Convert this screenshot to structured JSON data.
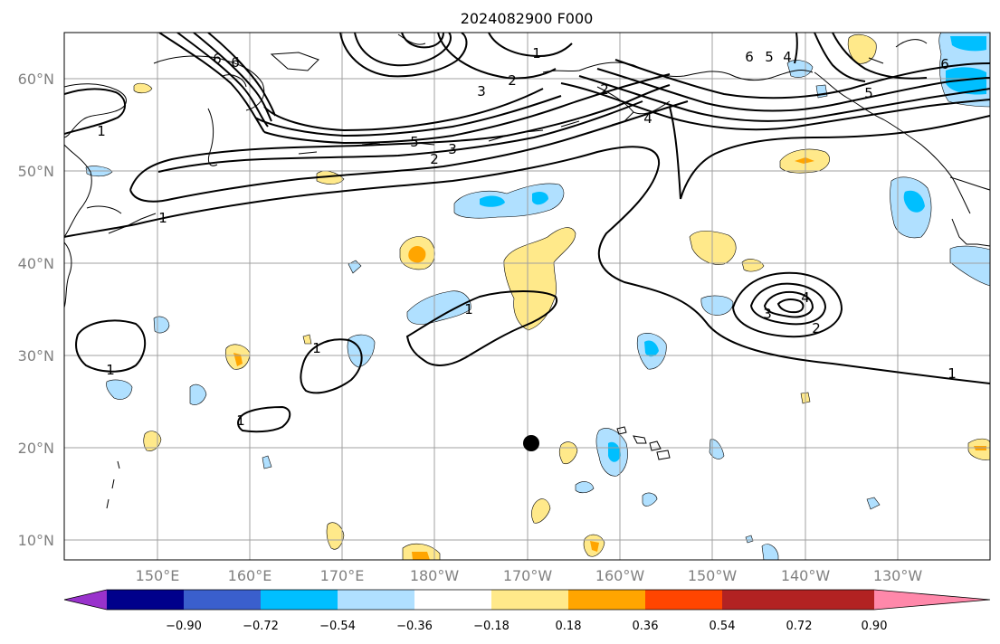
{
  "title": "2024082900 F000",
  "lat_labels": [
    "60°N",
    "50°N",
    "40°N",
    "30°N",
    "20°N",
    "10°N"
  ],
  "lon_labels": [
    "150°E",
    "160°E",
    "170°E",
    "180°W",
    "170°W",
    "160°W",
    "150°W",
    "140°W",
    "130°W"
  ],
  "colorbar": {
    "ticks": [
      "−0.90",
      "−0.72",
      "−0.54",
      "−0.36",
      "−0.18",
      "0.18",
      "0.36",
      "0.54",
      "0.72",
      "0.90"
    ],
    "colors": [
      "#9932cc",
      "#00008b",
      "#3a5fcd",
      "#00bfff",
      "#b0e0ff",
      "#ffffff",
      "#ffe98a",
      "#ffa500",
      "#ff4500",
      "#b22222",
      "#ff88aa"
    ]
  },
  "contour_labels": [
    "6",
    "6",
    "1",
    "1",
    "3",
    "2",
    "2",
    "1",
    "5",
    "3",
    "2",
    "4",
    "6",
    "5",
    "4",
    "5",
    "6",
    "1",
    "1",
    "1",
    "1",
    "4",
    "3",
    "2",
    "1"
  ],
  "marker": {
    "lat": 20.5,
    "lon": -170.0,
    "color": "#000000"
  },
  "colors": {
    "contour": "#000000",
    "grid": "#a0a0a0",
    "positive_light": "#ffe98a",
    "positive_dark": "#ffa500",
    "negative_light": "#b0e0ff",
    "negative_dark": "#00bfff"
  }
}
